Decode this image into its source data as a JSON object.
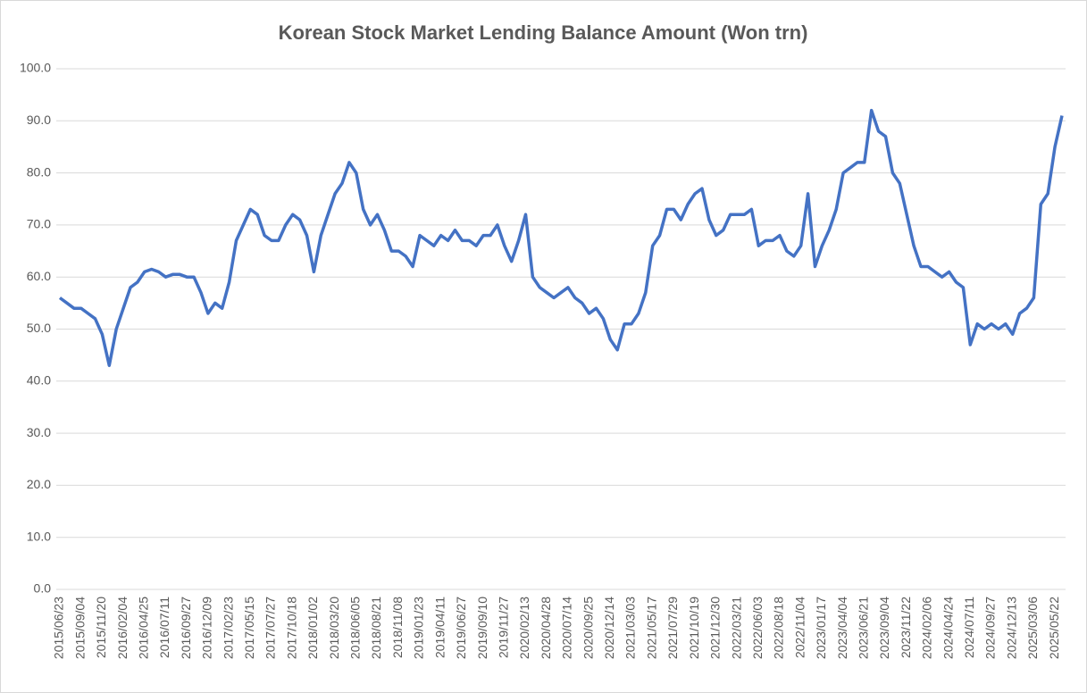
{
  "chart_data": {
    "type": "line",
    "title": "Korean Stock Market Lending Balance Amount (Won trn)",
    "categories": [
      "2015/06/23",
      null,
      null,
      "2015/09/04",
      null,
      null,
      "2015/11/20",
      null,
      null,
      "2016/02/04",
      null,
      null,
      "2016/04/25",
      null,
      null,
      "2016/07/11",
      null,
      null,
      "2016/09/27",
      null,
      null,
      "2016/12/09",
      null,
      null,
      "2017/02/23",
      null,
      null,
      "2017/05/15",
      null,
      null,
      "2017/07/27",
      null,
      null,
      "2017/10/18",
      null,
      null,
      "2018/01/02",
      null,
      null,
      "2018/03/20",
      null,
      null,
      "2018/06/05",
      null,
      null,
      "2018/08/21",
      null,
      null,
      "2018/11/08",
      null,
      null,
      "2019/01/23",
      null,
      null,
      "2019/04/11",
      null,
      null,
      "2019/06/27",
      null,
      null,
      "2019/09/10",
      null,
      null,
      "2019/11/27",
      null,
      null,
      "2020/02/13",
      null,
      null,
      "2020/04/28",
      null,
      null,
      "2020/07/14",
      null,
      null,
      "2020/09/25",
      null,
      null,
      "2020/12/14",
      null,
      null,
      "2021/03/03",
      null,
      null,
      "2021/05/17",
      null,
      null,
      "2021/07/29",
      null,
      null,
      "2021/10/19",
      null,
      null,
      "2021/12/30",
      null,
      null,
      "2022/03/21",
      null,
      null,
      "2022/06/03",
      null,
      null,
      "2022/08/18",
      null,
      null,
      "2022/11/04",
      null,
      null,
      "2023/01/17",
      null,
      null,
      "2023/04/04",
      null,
      null,
      "2023/06/21",
      null,
      null,
      "2023/09/04",
      null,
      null,
      "2023/11/22",
      null,
      null,
      "2024/02/06",
      null,
      null,
      "2024/04/24",
      null,
      null,
      "2024/07/11",
      null,
      null,
      "2024/09/27",
      null,
      null,
      "2024/12/13",
      null,
      null,
      "2025/03/06",
      null,
      null,
      "2025/05/22",
      null
    ],
    "series": [
      {
        "color": "#4472c4",
        "values": [
          56,
          55,
          54,
          54,
          53,
          52,
          49,
          43,
          50,
          54,
          58,
          59,
          61,
          61.5,
          61,
          60,
          60.5,
          60.5,
          60,
          60,
          57,
          53,
          55,
          54,
          59,
          67,
          70,
          73,
          72,
          68,
          67,
          67,
          70,
          72,
          71,
          68,
          61,
          68,
          72,
          76,
          78,
          82,
          80,
          73,
          70,
          72,
          69,
          65,
          65,
          64,
          62,
          68,
          67,
          66,
          68,
          67,
          69,
          67,
          67,
          66,
          68,
          68,
          70,
          66,
          63,
          67,
          72,
          60,
          58,
          57,
          56,
          57,
          58,
          56,
          55,
          53,
          54,
          52,
          48,
          46,
          51,
          51,
          53,
          57,
          66,
          68,
          73,
          73,
          71,
          74,
          76,
          77,
          71,
          68,
          69,
          72,
          72,
          72,
          73,
          66,
          67,
          67,
          68,
          65,
          64,
          66,
          76,
          62,
          66,
          69,
          73,
          80,
          81,
          82,
          82,
          92,
          88,
          87,
          80,
          78,
          72,
          66,
          62,
          62,
          61,
          60,
          61,
          59,
          58,
          47,
          51,
          50,
          51,
          50,
          51,
          49,
          53,
          54,
          56,
          74,
          76,
          85,
          91
        ]
      }
    ],
    "ylim": [
      0,
      100
    ],
    "yticks": [
      {
        "value": 0,
        "label": "0.0"
      },
      {
        "value": 10,
        "label": "10.0"
      },
      {
        "value": 20,
        "label": "20.0"
      },
      {
        "value": 30,
        "label": "30.0"
      },
      {
        "value": 40,
        "label": "40.0"
      },
      {
        "value": 50,
        "label": "50.0"
      },
      {
        "value": 60,
        "label": "60.0"
      },
      {
        "value": 70,
        "label": "70.0"
      },
      {
        "value": 80,
        "label": "80.0"
      },
      {
        "value": 90,
        "label": "90.0"
      },
      {
        "value": 100,
        "label": "100.0"
      }
    ],
    "grid": true
  }
}
